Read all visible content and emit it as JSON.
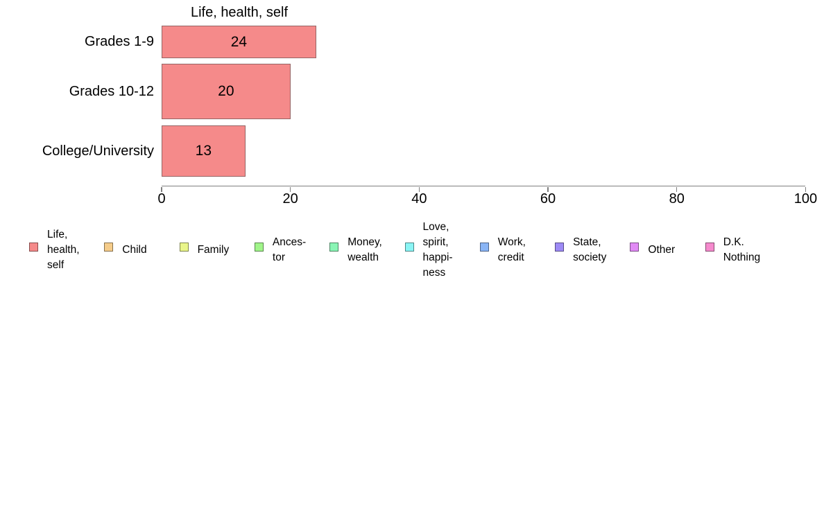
{
  "chart_data": {
    "type": "bar",
    "orientation": "horizontal",
    "title": "Life, health, self",
    "categories": [
      "Grades 1-9",
      "Grades 10-12",
      "College/University"
    ],
    "values": [
      24,
      20,
      13
    ],
    "bar_color": "#F58A8A",
    "bar_edge_color": "rgba(70,70,70,0.55)",
    "xlabel": "",
    "ylabel": "",
    "xlim": [
      0,
      100
    ],
    "x_ticks": [
      "0",
      "20",
      "40",
      "60",
      "80",
      "100"
    ],
    "grid": false,
    "data_labels_inside_bars": true,
    "legend_position": "bottom",
    "legend": [
      {
        "label": "Life, health, self",
        "lines": [
          "Life,",
          "health,",
          "self"
        ],
        "color": "#F58A8A"
      },
      {
        "label": "Child",
        "lines": [
          "Child"
        ],
        "color": "#F5CC8A"
      },
      {
        "label": "Family",
        "lines": [
          "Family"
        ],
        "color": "#E9F58A"
      },
      {
        "label": "Ancestor",
        "lines": [
          "Ances-",
          "tor"
        ],
        "color": "#A1F58A"
      },
      {
        "label": "Money, wealth",
        "lines": [
          "Money,",
          "wealth"
        ],
        "color": "#8AF5B5"
      },
      {
        "label": "Love, spirit, happiness",
        "lines": [
          "Love,",
          "spirit,",
          "happi-",
          "ness"
        ],
        "color": "#8AF5F5"
      },
      {
        "label": "Work, credit",
        "lines": [
          "Work,",
          "credit"
        ],
        "color": "#8AB5F5"
      },
      {
        "label": "State, society",
        "lines": [
          "State,",
          "society"
        ],
        "color": "#9D8AF5"
      },
      {
        "label": "Other",
        "lines": [
          "Other"
        ],
        "color": "#E18AF5"
      },
      {
        "label": "D.K. Nothing",
        "lines": [
          "D.K.",
          "Nothing"
        ],
        "color": "#F58ACD"
      }
    ]
  }
}
